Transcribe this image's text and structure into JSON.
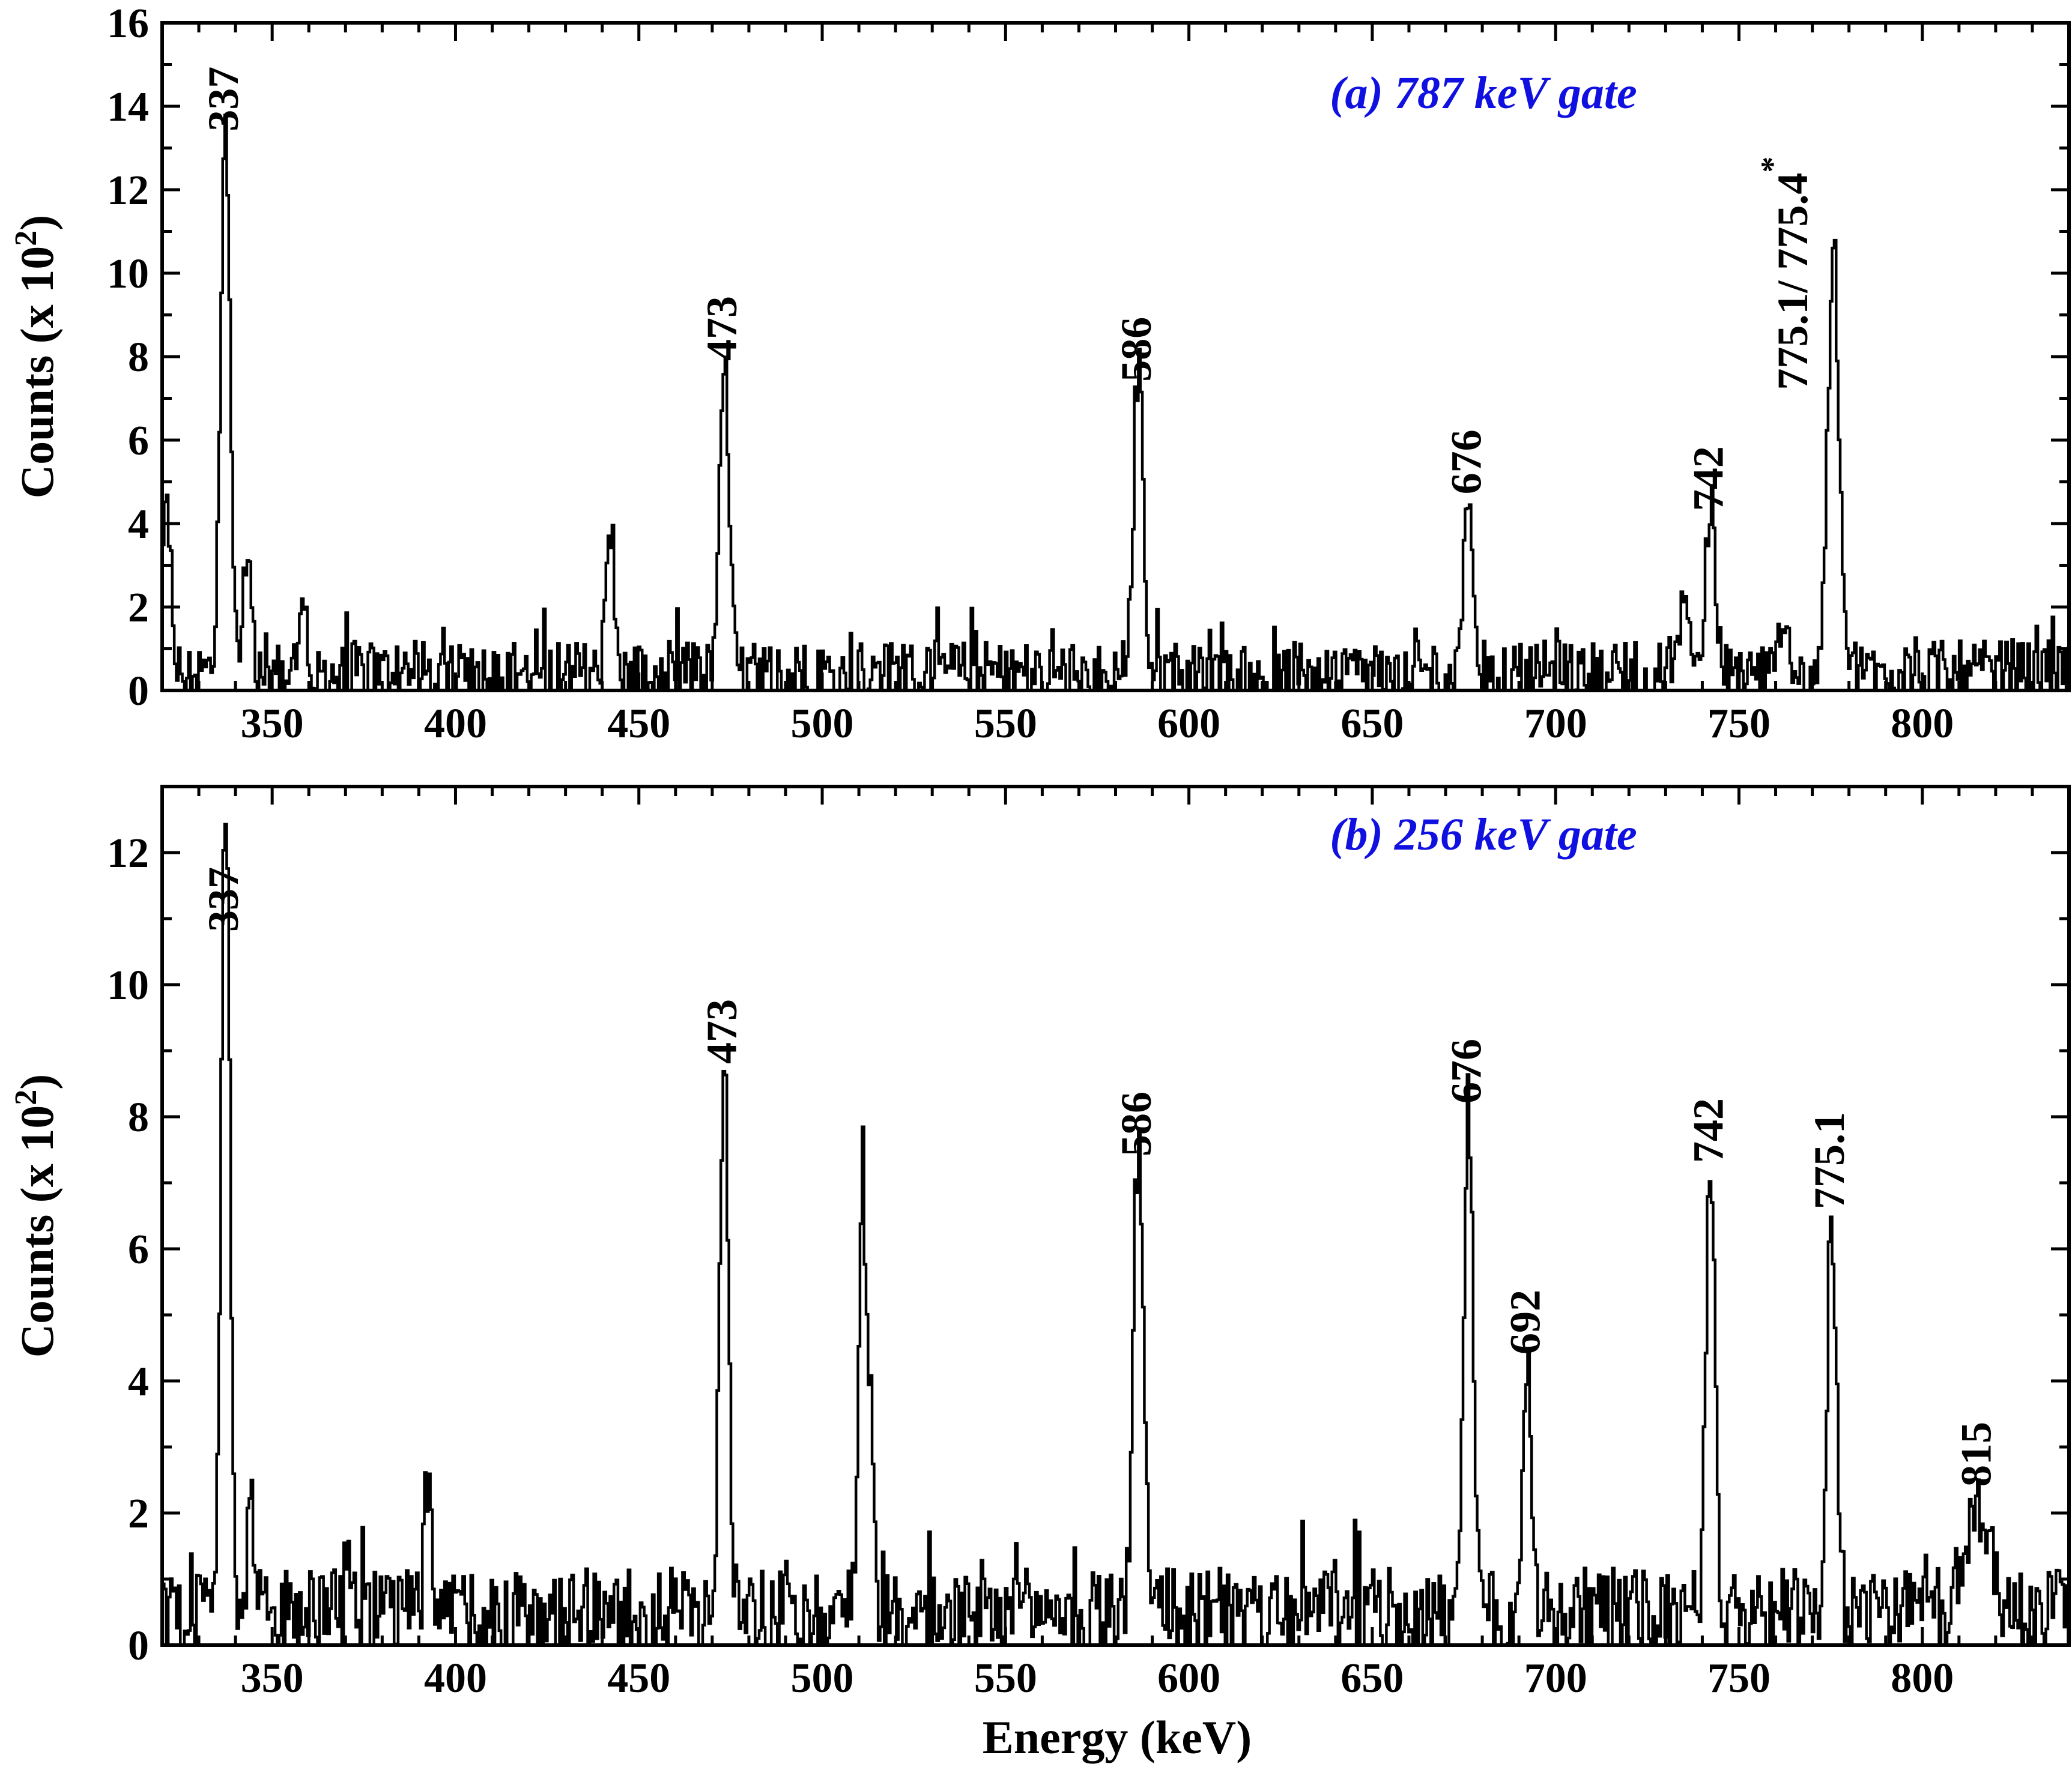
{
  "colors": {
    "axes": "#000000",
    "spectrum": "#000000",
    "gate_text": "#1010e0"
  },
  "figure": {
    "xlabel": "Energy (keV)"
  },
  "chart_data": [
    {
      "type": "line",
      "id": "a",
      "annotation": "(a) 787 keV gate",
      "ylabel_main": "Counts (x 10",
      "ylabel_sup": "2",
      "ylabel_end": ")",
      "xlim": [
        320,
        840
      ],
      "ylim": [
        0,
        16
      ],
      "xticks": [
        350,
        400,
        450,
        500,
        550,
        600,
        650,
        700,
        750,
        800
      ],
      "yticks": [
        0,
        2,
        4,
        6,
        8,
        10,
        12,
        14,
        16
      ],
      "xtick_labels": [
        "350",
        "400",
        "450",
        "500",
        "550",
        "600",
        "650",
        "700",
        "750",
        "800"
      ],
      "ytick_labels": [
        "0",
        "2",
        "4",
        "6",
        "8",
        "10",
        "12",
        "14",
        "16"
      ],
      "baseline": 0.5,
      "noise_amplitude": 1.1,
      "peaks": [
        {
          "x": 321,
          "height": 4.0,
          "width": 1.2
        },
        {
          "x": 337,
          "height": 13.2,
          "width": 1.3
        },
        {
          "x": 343,
          "height": 2.6,
          "width": 1.0
        },
        {
          "x": 358,
          "height": 2.2,
          "width": 1.0
        },
        {
          "x": 442,
          "height": 3.1,
          "width": 1.1
        },
        {
          "x": 473,
          "height": 7.6,
          "width": 1.3
        },
        {
          "x": 586,
          "height": 7.2,
          "width": 1.3
        },
        {
          "x": 676,
          "height": 4.4,
          "width": 1.3
        },
        {
          "x": 735,
          "height": 1.5,
          "width": 1.8
        },
        {
          "x": 742,
          "height": 4.0,
          "width": 1.3
        },
        {
          "x": 762,
          "height": 1.4,
          "width": 1.2
        },
        {
          "x": 775.5,
          "height": 9.6,
          "width": 1.6
        }
      ],
      "peak_labels": [
        {
          "x": 337,
          "y": 13.4,
          "text": "337"
        },
        {
          "x": 473,
          "y": 7.9,
          "text": "473"
        },
        {
          "x": 586,
          "y": 7.4,
          "text": "586"
        },
        {
          "x": 676,
          "y": 4.7,
          "text": "676"
        },
        {
          "x": 742,
          "y": 4.3,
          "text": "742"
        },
        {
          "x": 765,
          "y": 7.2,
          "text": "775.1/ 775.4",
          "star": "*"
        }
      ]
    },
    {
      "type": "line",
      "id": "b",
      "annotation": "(b) 256 keV gate",
      "ylabel_main": "Counts (x 10",
      "ylabel_sup": "2",
      "ylabel_end": ")",
      "xlim": [
        320,
        840
      ],
      "ylim": [
        0,
        13
      ],
      "xticks": [
        350,
        400,
        450,
        500,
        550,
        600,
        650,
        700,
        750,
        800
      ],
      "yticks": [
        0,
        2,
        4,
        6,
        8,
        10,
        12
      ],
      "xtick_labels": [
        "350",
        "400",
        "450",
        "500",
        "550",
        "600",
        "650",
        "700",
        "750",
        "800"
      ],
      "ytick_labels": [
        "0",
        "2",
        "4",
        "6",
        "8",
        "10",
        "12"
      ],
      "baseline": 0.6,
      "noise_amplitude": 0.9,
      "peaks": [
        {
          "x": 337,
          "height": 12.2,
          "width": 1.2
        },
        {
          "x": 344,
          "height": 1.6,
          "width": 1.0
        },
        {
          "x": 392,
          "height": 1.9,
          "width": 0.8
        },
        {
          "x": 473,
          "height": 8.5,
          "width": 1.2
        },
        {
          "x": 510,
          "height": 3.2,
          "width": 0.9
        },
        {
          "x": 511,
          "height": 4.9,
          "width": 0.8
        },
        {
          "x": 513,
          "height": 3.6,
          "width": 0.8
        },
        {
          "x": 586,
          "height": 7.1,
          "width": 1.3
        },
        {
          "x": 676,
          "height": 7.8,
          "width": 1.2
        },
        {
          "x": 692,
          "height": 4.0,
          "width": 1.2
        },
        {
          "x": 742,
          "height": 6.6,
          "width": 1.2
        },
        {
          "x": 775,
          "height": 6.1,
          "width": 1.2
        },
        {
          "x": 815,
          "height": 1.6,
          "width": 3.0
        }
      ],
      "peak_labels": [
        {
          "x": 337,
          "y": 10.8,
          "text": "337"
        },
        {
          "x": 473,
          "y": 8.8,
          "text": "473"
        },
        {
          "x": 586,
          "y": 7.4,
          "text": "586"
        },
        {
          "x": 676,
          "y": 8.2,
          "text": "676"
        },
        {
          "x": 692,
          "y": 4.4,
          "text": "692"
        },
        {
          "x": 742,
          "y": 7.3,
          "text": "742"
        },
        {
          "x": 775,
          "y": 6.6,
          "text": "775.1"
        },
        {
          "x": 815,
          "y": 2.4,
          "text": "815"
        }
      ]
    }
  ]
}
